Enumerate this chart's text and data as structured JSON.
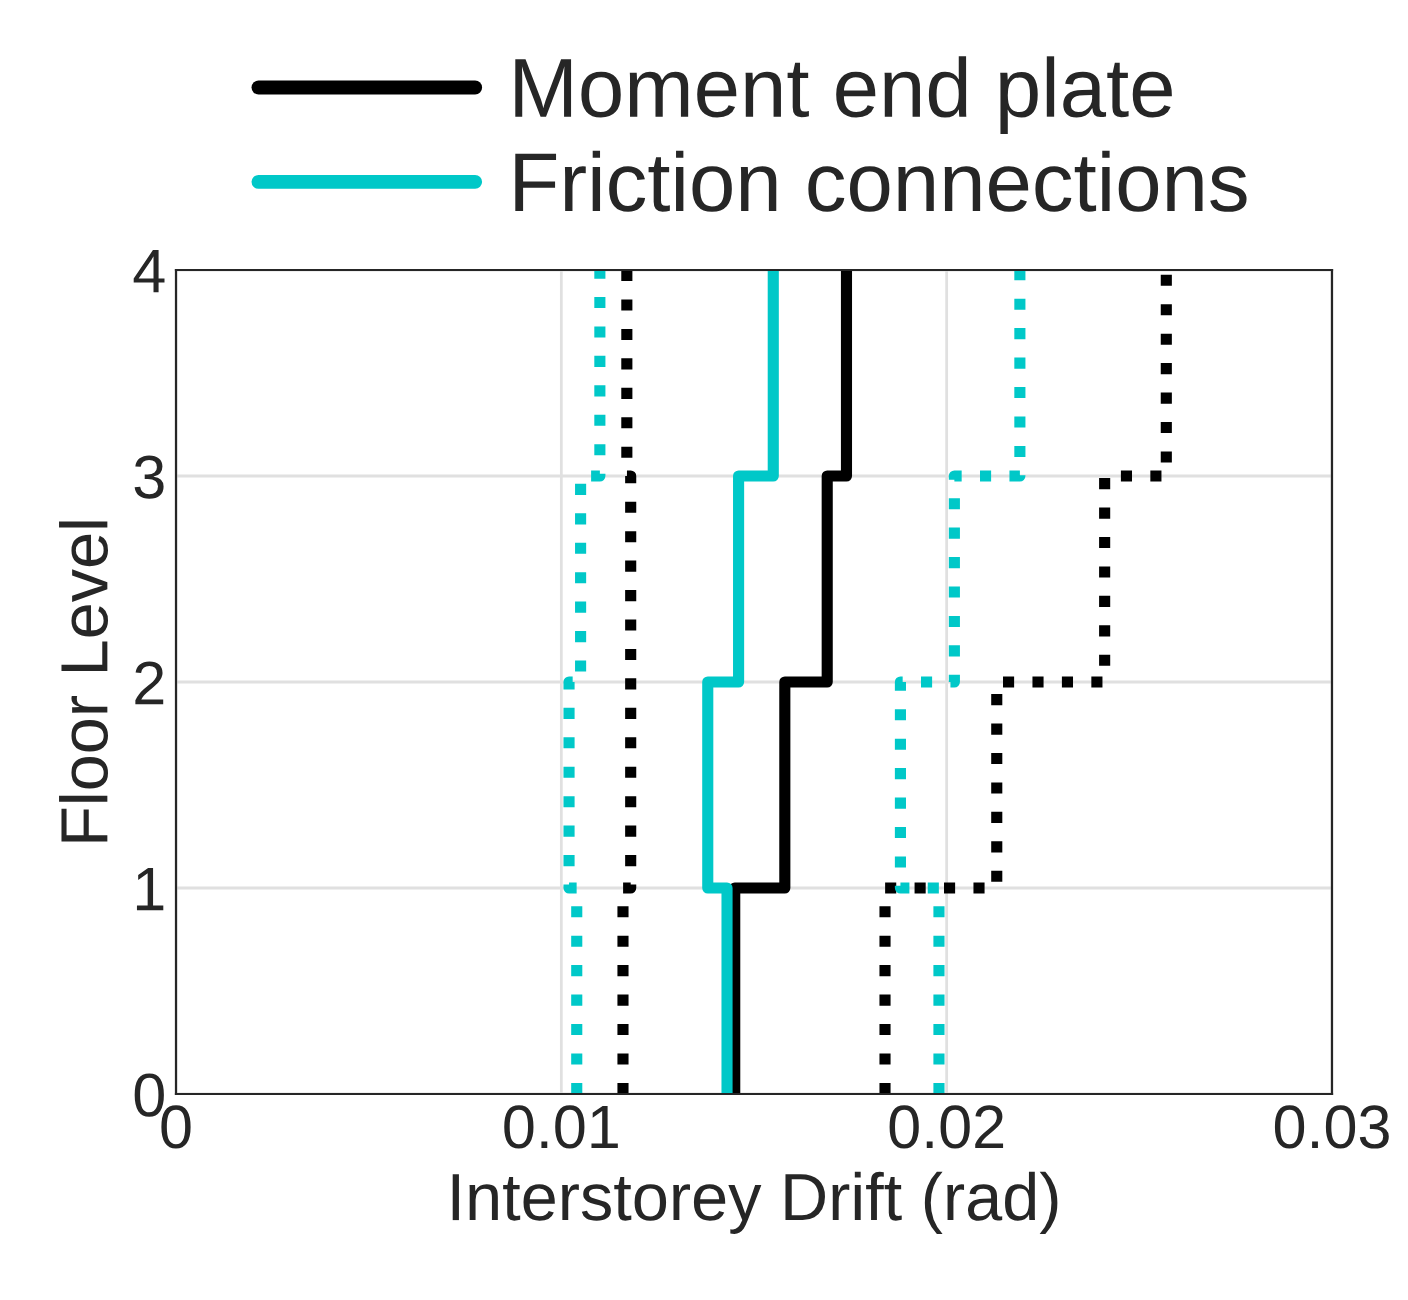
{
  "chart_data": {
    "type": "line",
    "xlabel": "Interstorey Drift (rad)",
    "ylabel": "Floor Level",
    "xlim": [
      0,
      0.03
    ],
    "xticks": [
      0,
      0.01,
      0.02,
      0.03
    ],
    "ylim": [
      0,
      4
    ],
    "yticks": [
      0,
      1,
      2,
      3,
      4
    ],
    "grid": true,
    "legend": "top",
    "marker": "none",
    "series": [
      {
        "name": "Moment end plate",
        "color": "#000000",
        "line_style": "solid",
        "x": [
          0.0145,
          0.0145,
          0.0158,
          0.0158,
          0.0169,
          0.0169,
          0.0174,
          0.0174
        ],
        "values": [
          0,
          1,
          1,
          2,
          2,
          3,
          3,
          4
        ]
      },
      {
        "name": "Friction connections",
        "color": "#00c8c8",
        "line_style": "solid",
        "x": [
          0.0143,
          0.0143,
          0.0138,
          0.0138,
          0.0146,
          0.0146,
          0.0155,
          0.0155
        ],
        "values": [
          0,
          1,
          1,
          2,
          2,
          3,
          3,
          4
        ]
      },
      {
        "color": "#000000",
        "line_style": "dotted",
        "x": [
          0.0116,
          0.0116,
          0.0118,
          0.0118,
          0.0118,
          0.0118,
          0.0117,
          0.0117
        ],
        "values": [
          0,
          1,
          1,
          2,
          2,
          3,
          3,
          4
        ]
      },
      {
        "color": "#00c8c8",
        "line_style": "dotted",
        "x": [
          0.0104,
          0.0104,
          0.0102,
          0.0102,
          0.0105,
          0.0105,
          0.011,
          0.011
        ],
        "values": [
          0,
          1,
          1,
          2,
          2,
          3,
          3,
          4
        ]
      },
      {
        "color": "#000000",
        "line_style": "dotted",
        "x": [
          0.0184,
          0.0184,
          0.0213,
          0.0213,
          0.0241,
          0.0241,
          0.0257,
          0.0257
        ],
        "values": [
          0,
          1,
          1,
          2,
          2,
          3,
          3,
          4
        ]
      },
      {
        "color": "#00c8c8",
        "line_style": "dotted",
        "x": [
          0.0198,
          0.0198,
          0.0188,
          0.0188,
          0.0202,
          0.0202,
          0.0219,
          0.0219
        ],
        "values": [
          0,
          1,
          1,
          2,
          2,
          3,
          3,
          4
        ]
      }
    ]
  }
}
